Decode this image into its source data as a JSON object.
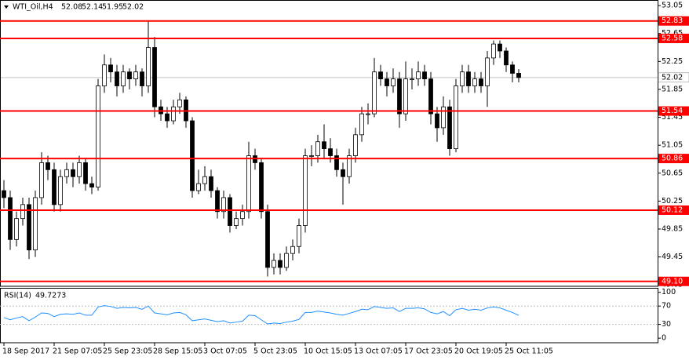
{
  "chart_data": {
    "type": "candlestick",
    "symbol": "WTI_Oil,H4",
    "categories": [
      "18 Sep 2017",
      null,
      null,
      null,
      null,
      null,
      null,
      null,
      "21 Sep 07:05",
      null,
      null,
      null,
      null,
      null,
      null,
      null,
      "25 Sep 23:05",
      null,
      null,
      null,
      null,
      null,
      null,
      null,
      "28 Sep 15:05",
      null,
      null,
      null,
      null,
      null,
      null,
      null,
      "3 Oct 07:05",
      null,
      null,
      null,
      null,
      null,
      null,
      null,
      "5 Oct 23:05",
      null,
      null,
      null,
      null,
      null,
      null,
      null,
      "10 Oct 15:05",
      null,
      null,
      null,
      null,
      null,
      null,
      null,
      "13 Oct 07:05",
      null,
      null,
      null,
      null,
      null,
      null,
      null,
      "17 Oct 23:05",
      null,
      null,
      null,
      null,
      null,
      null,
      null,
      "20 Oct 19:05",
      null,
      null,
      null,
      null,
      null,
      null,
      null,
      "25 Oct 11:05",
      null,
      null
    ],
    "open": [
      50.4,
      50.3,
      49.7,
      50.0,
      50.2,
      49.55,
      50.3,
      50.8,
      50.7,
      50.2,
      50.6,
      50.7,
      50.6,
      50.8,
      50.5,
      50.45,
      51.9,
      52.2,
      52.1,
      51.9,
      52.1,
      52.0,
      52.1,
      51.9,
      52.45,
      51.6,
      51.5,
      51.4,
      51.6,
      51.7,
      51.4,
      50.4,
      50.5,
      50.6,
      50.4,
      50.1,
      50.3,
      49.9,
      50.0,
      50.1,
      50.9,
      50.8,
      50.1,
      49.3,
      49.4,
      49.3,
      49.5,
      49.6,
      49.9,
      50.9,
      50.9,
      51.1,
      51.0,
      50.9,
      50.7,
      50.6,
      50.9,
      51.2,
      51.5,
      51.5,
      52.1,
      52.0,
      51.9,
      52.0,
      51.5,
      52.0,
      52.0,
      52.1,
      52.0,
      51.5,
      51.3,
      51.6,
      51.0,
      51.9,
      52.1,
      51.9,
      52.0,
      51.9,
      52.3,
      52.5,
      52.4,
      52.2,
      52.08
    ],
    "high": [
      50.55,
      50.4,
      50.1,
      50.3,
      50.3,
      50.4,
      50.95,
      50.9,
      50.8,
      50.7,
      50.8,
      50.8,
      50.9,
      50.85,
      50.6,
      52.0,
      52.35,
      52.3,
      52.2,
      52.2,
      52.15,
      52.2,
      52.15,
      52.83,
      52.6,
      51.7,
      51.6,
      51.7,
      51.8,
      51.75,
      51.45,
      50.7,
      50.75,
      50.7,
      50.45,
      50.4,
      50.35,
      50.1,
      50.2,
      51.1,
      51.0,
      50.85,
      50.2,
      49.5,
      49.5,
      49.6,
      49.7,
      50.0,
      51.0,
      51.05,
      51.2,
      51.35,
      51.15,
      51.0,
      50.8,
      51.0,
      51.3,
      51.6,
      51.65,
      52.3,
      52.2,
      52.1,
      52.15,
      52.1,
      52.25,
      52.15,
      52.25,
      52.2,
      52.1,
      51.6,
      51.75,
      51.7,
      52.0,
      52.2,
      52.2,
      52.1,
      52.1,
      52.4,
      52.55,
      52.55,
      52.45,
      52.25,
      52.14
    ],
    "low": [
      50.15,
      49.55,
      49.6,
      49.9,
      49.42,
      49.45,
      50.2,
      50.55,
      50.1,
      50.1,
      50.5,
      50.45,
      50.5,
      50.4,
      50.35,
      50.4,
      51.8,
      51.95,
      51.75,
      51.8,
      51.85,
      51.9,
      51.75,
      51.8,
      51.45,
      51.4,
      51.3,
      51.35,
      51.5,
      51.3,
      50.3,
      50.35,
      50.4,
      50.3,
      50.0,
      50.0,
      49.8,
      49.85,
      49.9,
      50.0,
      50.7,
      50.0,
      49.17,
      49.2,
      49.2,
      49.25,
      49.4,
      49.5,
      49.8,
      50.75,
      50.8,
      50.85,
      50.8,
      50.6,
      50.2,
      50.5,
      50.8,
      51.1,
      51.35,
      51.45,
      51.9,
      51.75,
      51.8,
      51.3,
      51.4,
      51.85,
      51.9,
      51.9,
      51.35,
      51.1,
      51.2,
      50.9,
      50.95,
      51.8,
      51.8,
      51.8,
      51.8,
      51.6,
      52.2,
      52.3,
      52.1,
      51.95,
      51.95
    ],
    "close": [
      50.3,
      49.7,
      50.0,
      50.2,
      49.55,
      50.3,
      50.8,
      50.7,
      50.2,
      50.6,
      50.7,
      50.6,
      50.8,
      50.5,
      50.45,
      51.9,
      52.2,
      52.1,
      51.9,
      52.1,
      52.0,
      52.1,
      51.9,
      52.45,
      51.6,
      51.5,
      51.4,
      51.6,
      51.7,
      51.4,
      50.4,
      50.5,
      50.6,
      50.4,
      50.1,
      50.3,
      49.9,
      50.0,
      50.1,
      50.9,
      50.8,
      50.1,
      49.3,
      49.4,
      49.3,
      49.5,
      49.6,
      49.9,
      50.9,
      50.9,
      51.1,
      51.0,
      50.9,
      50.7,
      50.6,
      50.9,
      51.2,
      51.5,
      51.5,
      52.1,
      52.0,
      51.9,
      52.0,
      51.5,
      52.0,
      52.0,
      52.1,
      52.0,
      51.5,
      51.3,
      51.6,
      51.0,
      51.9,
      52.1,
      51.9,
      52.0,
      51.9,
      52.3,
      52.5,
      52.4,
      52.2,
      52.08,
      52.02
    ],
    "up_color": "#ffffff",
    "down_color": "#000000",
    "ylim": [
      49.03,
      53.13
    ],
    "yticks": [
      53.05,
      52.65,
      52.25,
      51.85,
      51.45,
      51.05,
      50.65,
      50.25,
      49.85,
      49.45,
      49.05
    ],
    "levels": [
      52.83,
      52.58,
      51.54,
      50.86,
      50.12,
      {
        "value": 49.1,
        "label": "49.10"
      }
    ],
    "level_color": "#ff0000",
    "current_line_color": "#c0c0c0",
    "rsi": {
      "name": "RSI(14)",
      "color": "#1e90ff",
      "values": [
        45,
        40,
        44,
        47,
        38,
        46,
        55,
        54,
        47,
        52,
        53,
        52,
        55,
        50,
        50,
        68,
        71,
        69,
        65,
        67,
        66,
        67,
        63,
        70,
        55,
        53,
        51,
        55,
        56,
        51,
        38,
        40,
        42,
        39,
        36,
        38,
        33,
        35,
        37,
        50,
        49,
        40,
        31,
        33,
        32,
        35,
        37,
        41,
        56,
        56,
        59,
        57,
        55,
        52,
        50,
        54,
        58,
        63,
        62,
        69,
        67,
        65,
        66,
        58,
        65,
        65,
        66,
        64,
        56,
        53,
        58,
        49,
        62,
        65,
        61,
        63,
        61,
        66,
        68,
        66,
        61,
        56,
        49.7273
      ],
      "ylim": [
        -10,
        108
      ],
      "yticks": [
        100,
        70,
        30,
        0
      ]
    }
  }
}
